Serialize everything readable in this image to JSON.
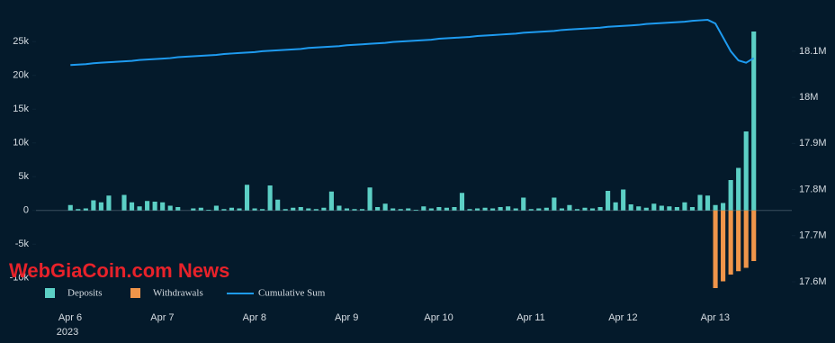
{
  "chart_data": {
    "type": "bar",
    "watermark": "WebGiaCoin.com News",
    "x_year": "2023",
    "categories": [
      "Apr 6",
      null,
      null,
      null,
      null,
      null,
      null,
      null,
      null,
      null,
      null,
      null,
      "Apr 7",
      null,
      null,
      null,
      null,
      null,
      null,
      null,
      null,
      null,
      null,
      null,
      "Apr 8",
      null,
      null,
      null,
      null,
      null,
      null,
      null,
      null,
      null,
      null,
      null,
      "Apr 9",
      null,
      null,
      null,
      null,
      null,
      null,
      null,
      null,
      null,
      null,
      null,
      "Apr 10",
      null,
      null,
      null,
      null,
      null,
      null,
      null,
      null,
      null,
      null,
      null,
      "Apr 11",
      null,
      null,
      null,
      null,
      null,
      null,
      null,
      null,
      null,
      null,
      null,
      "Apr 12",
      null,
      null,
      null,
      null,
      null,
      null,
      null,
      null,
      null,
      null,
      null,
      "Apr 13",
      null,
      null,
      null,
      null,
      null
    ],
    "series": [
      {
        "name": "Deposits",
        "color": "#5ccfc5",
        "values": [
          800,
          200,
          300,
          1500,
          1200,
          2200,
          0,
          2300,
          1200,
          600,
          1400,
          1300,
          1200,
          700,
          500,
          0,
          300,
          400,
          100,
          700,
          200,
          400,
          300,
          3800,
          300,
          200,
          3700,
          1600,
          200,
          400,
          500,
          300,
          200,
          400,
          2800,
          700,
          300,
          200,
          200,
          3400,
          500,
          1000,
          300,
          200,
          300,
          100,
          600,
          300,
          500,
          400,
          500,
          2600,
          200,
          300,
          400,
          300,
          500,
          600,
          300,
          1900,
          200,
          300,
          400,
          1900,
          300,
          800,
          200,
          400,
          300,
          500,
          2900,
          1200,
          3100,
          900,
          600,
          400,
          1000,
          700,
          600,
          500,
          1200,
          500,
          2300,
          2200,
          800,
          1100,
          4500,
          6300,
          11700,
          26500
        ]
      },
      {
        "name": "Withdrawals",
        "color": "#f0954a",
        "values": [
          0,
          0,
          0,
          0,
          0,
          0,
          0,
          0,
          0,
          0,
          0,
          0,
          0,
          0,
          0,
          0,
          0,
          0,
          0,
          0,
          0,
          0,
          0,
          0,
          0,
          0,
          0,
          0,
          0,
          0,
          0,
          0,
          0,
          0,
          0,
          0,
          0,
          0,
          0,
          0,
          0,
          0,
          0,
          0,
          0,
          0,
          0,
          0,
          0,
          0,
          0,
          0,
          0,
          0,
          0,
          0,
          0,
          0,
          0,
          0,
          0,
          0,
          0,
          0,
          0,
          0,
          0,
          0,
          0,
          0,
          0,
          0,
          0,
          0,
          0,
          0,
          0,
          0,
          0,
          0,
          0,
          0,
          0,
          0,
          -11500,
          -10500,
          -9500,
          -9000,
          -8500,
          -7500
        ]
      },
      {
        "name": "Cumulative Sum",
        "color": "#1e9bf0",
        "axis": "y2",
        "values": [
          18070000,
          18071000,
          18072000,
          18074000,
          18075000,
          18076000,
          18077000,
          18078000,
          18079000,
          18081000,
          18082000,
          18083000,
          18084000,
          18085000,
          18087000,
          18088000,
          18089000,
          18090000,
          18091000,
          18092000,
          18094000,
          18095000,
          18096000,
          18097000,
          18098000,
          18100000,
          18101000,
          18102000,
          18103000,
          18104000,
          18105000,
          18107000,
          18108000,
          18109000,
          18110000,
          18111000,
          18113000,
          18114000,
          18115000,
          18116000,
          18117000,
          18118000,
          18120000,
          18121000,
          18122000,
          18123000,
          18124000,
          18125000,
          18127000,
          18128000,
          18129000,
          18130000,
          18131000,
          18133000,
          18134000,
          18135000,
          18136000,
          18137000,
          18138000,
          18140000,
          18141000,
          18142000,
          18143000,
          18144000,
          18146000,
          18147000,
          18148000,
          18149000,
          18150000,
          18151000,
          18153000,
          18154000,
          18155000,
          18156000,
          18157000,
          18159000,
          18160000,
          18161000,
          18162000,
          18163000,
          18164000,
          18166000,
          18167000,
          18168000,
          18160000,
          18130000,
          18100000,
          18080000,
          18075000,
          18085000
        ]
      }
    ],
    "ylim": [
      -13500,
      28500
    ],
    "yticks": [
      {
        "value": -10000,
        "label": "-10k"
      },
      {
        "value": -5000,
        "label": "-5k"
      },
      0,
      {
        "value": 5000,
        "label": "5k"
      },
      {
        "value": 10000,
        "label": "10k"
      },
      {
        "value": 15000,
        "label": "15k"
      },
      {
        "value": 20000,
        "label": "20k"
      },
      {
        "value": 25000,
        "label": "25k"
      }
    ],
    "y2lim": [
      17557000,
      18172000
    ],
    "y2ticks": [
      {
        "value": 17600000,
        "label": "17.6M"
      },
      {
        "value": 17700000,
        "label": "17.7M"
      },
      {
        "value": 17800000,
        "label": "17.8M"
      },
      {
        "value": 17900000,
        "label": "17.9M"
      },
      {
        "value": 18000000,
        "label": "18M"
      },
      {
        "value": 18100000,
        "label": "18.1M"
      }
    ]
  }
}
